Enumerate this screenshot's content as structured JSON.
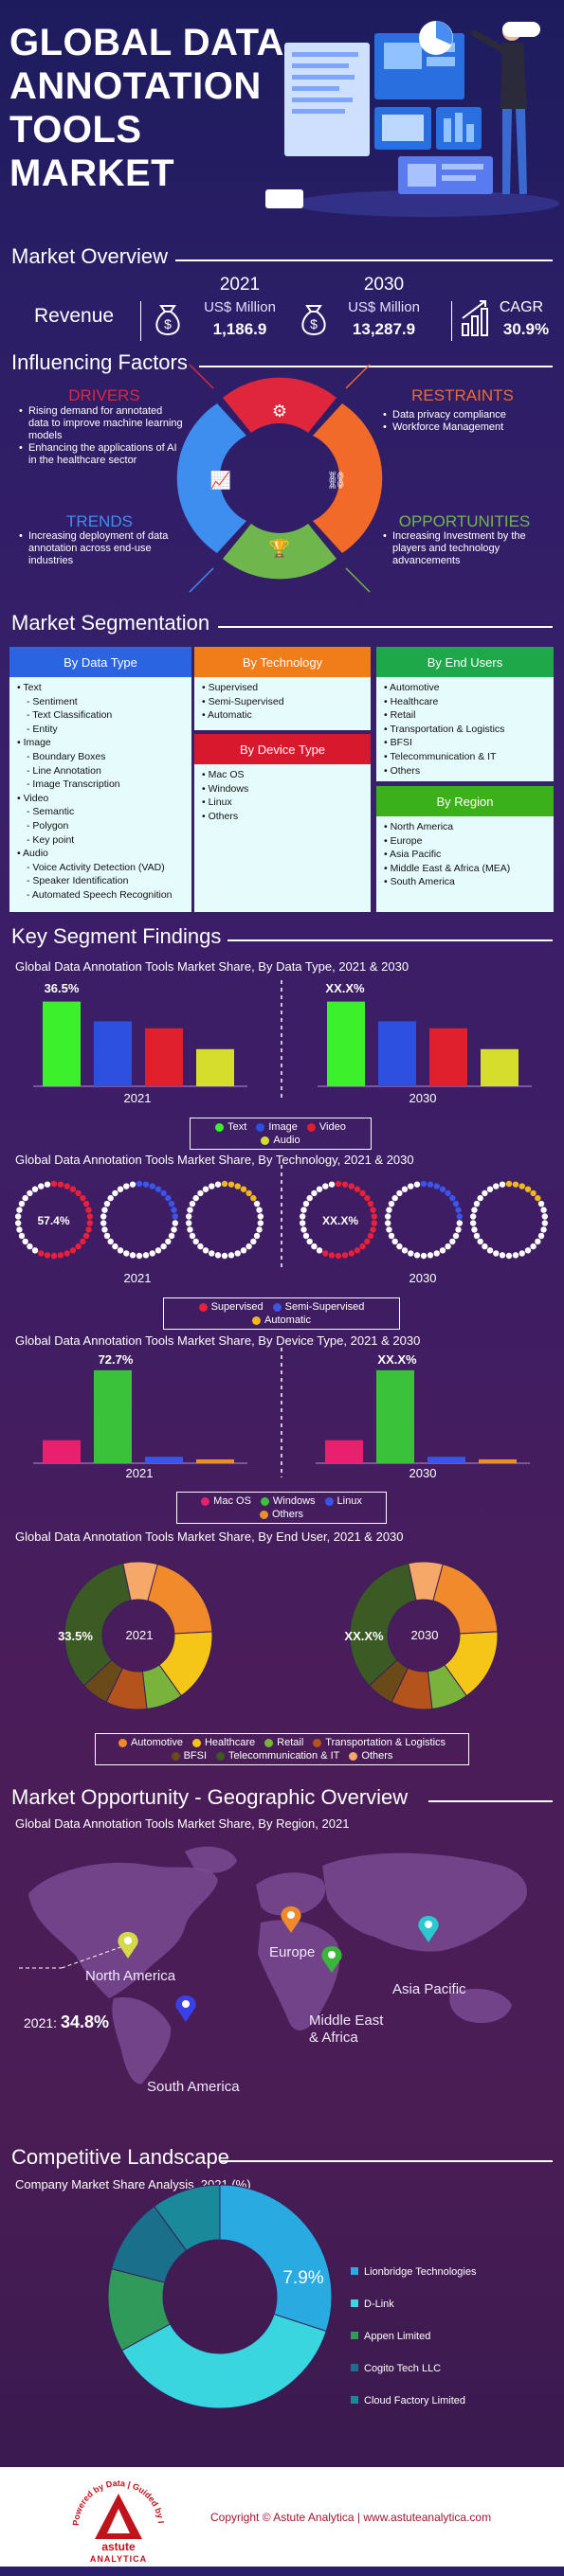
{
  "header": {
    "title_lines": [
      "GLOBAL DATA",
      "ANNOTATION",
      "TOOLS",
      "MARKET"
    ]
  },
  "overview": {
    "title": "Market Overview",
    "revenue_label": "Revenue",
    "y2021": "2021",
    "y2030": "2030",
    "unit": "US$ Million",
    "v2021": "1,186.9",
    "v2030": "13,287.9",
    "cagr_label": "CAGR",
    "cagr_value": "30.9%"
  },
  "factors": {
    "title": "Influencing Factors",
    "drivers_title": "DRIVERS",
    "drivers": [
      "Rising demand for annotated data to improve machine learning models",
      "Enhancing the applications of AI in the healthcare sector"
    ],
    "restraints_title": "RESTRAINTS",
    "restraints": [
      "Data privacy compliance",
      "Workforce Management"
    ],
    "trends_title": "TRENDS",
    "trends": [
      "Increasing deployment of data annotation across end-use industries"
    ],
    "opportunities_title": "OPPORTUNITIES",
    "opportunities": [
      "Increasing Investment by the players and technology advancements"
    ]
  },
  "segmentation": {
    "title": "Market Segmentation",
    "by_data_type": {
      "title": "By Data Type",
      "items": [
        {
          "label": "Text",
          "subs": [
            "Sentiment",
            "Text  Classification",
            "Entity"
          ]
        },
        {
          "label": "Image",
          "subs": [
            "Boundary Boxes",
            "Line Annotation",
            "Image Transcription"
          ]
        },
        {
          "label": "Video",
          "subs": [
            "Semantic",
            "Polygon",
            "Key point"
          ]
        },
        {
          "label": "Audio",
          "subs": [
            "Voice Activity Detection (VAD)",
            "Speaker Identification",
            "Automated Speech Recognition"
          ]
        }
      ]
    },
    "by_technology": {
      "title": "By Technology",
      "items": [
        "Supervised",
        "Semi-Supervised",
        "Automatic"
      ]
    },
    "by_device_type": {
      "title": "By Device Type",
      "items": [
        "Mac OS",
        "Windows",
        "Linux",
        "Others"
      ]
    },
    "by_end_users": {
      "title": "By End Users",
      "items": [
        "Automotive",
        "Healthcare",
        "Retail",
        "Transportation & Logistics",
        "BFSI",
        "Telecommunication & IT",
        "Others"
      ]
    },
    "by_region": {
      "title": "By Region",
      "items": [
        "North America",
        "Europe",
        "Asia Pacific",
        "Middle East & Africa (MEA)",
        "South America"
      ]
    }
  },
  "findings": {
    "title": "Key Segment Findings",
    "data_type_title": "Global Data Annotation Tools Market Share, By Data Type, 2021 & 2030",
    "data_type_label_2021": "36.5%",
    "data_type_label_2030": "XX.X%",
    "technology_title": "Global Data Annotation Tools Market Share, By Technology, 2021 & 2030",
    "technology_label_2021": "57.4%",
    "technology_label_2030": "XX.X%",
    "device_title": "Global Data Annotation Tools Market Share, By Device Type, 2021 & 2030",
    "device_label_2021": "72.7%",
    "device_label_2030": "XX.X%",
    "enduser_title": "Global Data Annotation Tools Market Share, By End User, 2021 & 2030",
    "enduser_label_2021": "33.5%",
    "enduser_label_2030": "XX.X%",
    "year_2021": "2021",
    "year_2030": "2030"
  },
  "geo": {
    "title": "Market Opportunity - Geographic Overview",
    "subtitle": "Global Data Annotation Tools Market Share, By Region, 2021",
    "regions": [
      "North America",
      "Europe",
      "Middle East & Africa",
      "Asia Pacific",
      "South America"
    ],
    "na_share_prefix": "2021:",
    "na_share": "34.8%"
  },
  "competitive": {
    "title": "Competitive Landscape",
    "subtitle": "Company Market Share Analysis, 2021 (%)",
    "center_label": "7.9%"
  },
  "footer": {
    "tagline": "Powered by Data | Guided by Intelligence",
    "brand": "astute",
    "brand2": "ANALYTICA",
    "copyright": "Copyright © Astute Analytica  |  www.astuteanalytica.com"
  },
  "colors": {
    "text": "#3cf02c",
    "image": "#2d50e0",
    "video": "#e0202c",
    "audio": "#d6dd2a",
    "supervised": "#e8203a",
    "semi": "#3a55e8",
    "automatic": "#f0b81a",
    "macos": "#e8206e",
    "windows": "#3ac23a",
    "linux": "#3a55e8",
    "others_dev": "#e8902a",
    "automotive": "#f08a2a",
    "healthcare": "#f5c518",
    "retail": "#7ab33c",
    "transport": "#b4541c",
    "bfsi": "#6b4a1a",
    "telecom": "#3c5a24",
    "others_eu": "#f5a868",
    "drivers": "#e0263c",
    "restraints": "#f26a2a",
    "trends": "#3e8ef0",
    "opportunities": "#6fb64c"
  },
  "chart_data": [
    {
      "type": "bar",
      "title": "Global Data Annotation Tools Market Share, By Data Type, 2021 & 2030",
      "categories": [
        "2021",
        "2030"
      ],
      "series": [
        {
          "name": "Text",
          "values": [
            36.5,
            36.5
          ]
        },
        {
          "name": "Image",
          "values": [
            28,
            28
          ]
        },
        {
          "name": "Video",
          "values": [
            25,
            25
          ]
        },
        {
          "name": "Audio",
          "values": [
            16,
            16
          ]
        }
      ]
    },
    {
      "type": "pie",
      "title": "Global Data Annotation Tools Market Share, By Technology, 2021 & 2030",
      "categories": [
        "2021",
        "2030"
      ],
      "series": [
        {
          "name": "Supervised",
          "values": [
            57.4,
            57.4
          ]
        },
        {
          "name": "Semi-Supervised",
          "values": [
            25,
            25
          ]
        },
        {
          "name": "Automatic",
          "values": [
            17.6,
            17.6
          ]
        }
      ]
    },
    {
      "type": "bar",
      "title": "Global Data Annotation Tools Market Share, By Device Type, 2021 & 2030",
      "categories": [
        "2021",
        "2030"
      ],
      "series": [
        {
          "name": "Mac OS",
          "values": [
            18,
            18
          ]
        },
        {
          "name": "Windows",
          "values": [
            72.7,
            72.7
          ]
        },
        {
          "name": "Linux",
          "values": [
            5,
            5
          ]
        },
        {
          "name": "Others",
          "values": [
            3,
            3
          ]
        }
      ]
    },
    {
      "type": "pie",
      "title": "Global Data Annotation Tools Market Share, By End User, 2021 & 2030",
      "categories": [
        "2021",
        "2030"
      ],
      "series": [
        {
          "name": "Automotive",
          "values": [
            20,
            20
          ]
        },
        {
          "name": "Healthcare",
          "values": [
            16,
            16
          ]
        },
        {
          "name": "Retail",
          "values": [
            8,
            8
          ]
        },
        {
          "name": "Transportation & Logistics",
          "values": [
            9,
            9
          ]
        },
        {
          "name": "BFSI",
          "values": [
            6,
            6
          ]
        },
        {
          "name": "Telecommunication & IT",
          "values": [
            33.5,
            33.5
          ]
        },
        {
          "name": "Others",
          "values": [
            7.5,
            7.5
          ]
        }
      ]
    },
    {
      "type": "pie",
      "title": "Company Market Share Analysis, 2021 (%)",
      "categories": [
        "Lionbridge Technologies",
        "D-Link",
        "Appen Limited",
        "Cogito Tech LLC",
        "Cloud Factory Limited"
      ],
      "values": [
        30,
        37,
        12,
        11,
        10
      ],
      "colors": [
        "#29abe2",
        "#3ad6e0",
        "#2f9a5a",
        "#1a6f8a",
        "#1a8a9a"
      ]
    }
  ]
}
